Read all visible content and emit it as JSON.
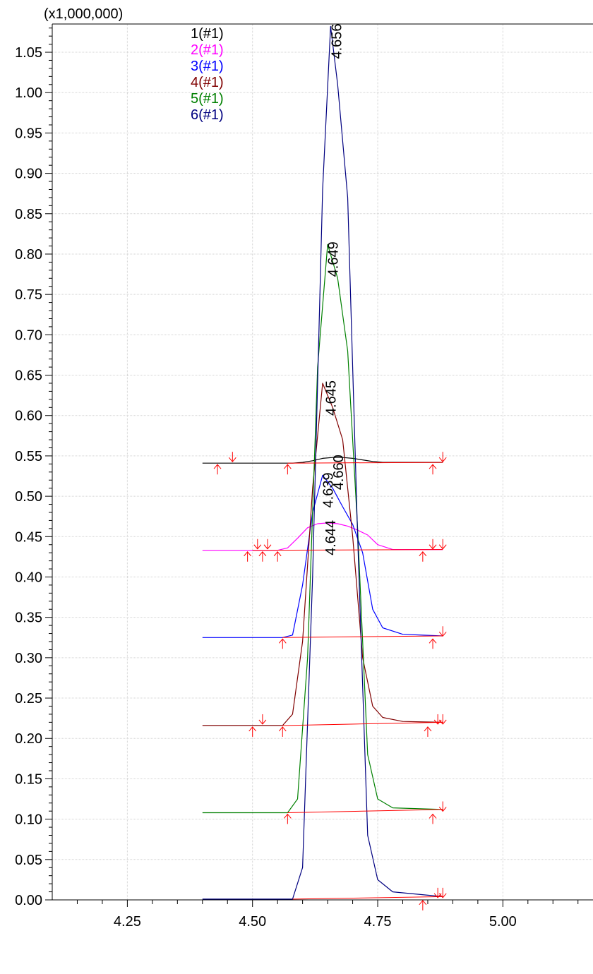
{
  "chart_data": {
    "type": "line",
    "title": "",
    "y_multiplier_label": "(x1,000,000)",
    "xlabel": "",
    "ylabel": "",
    "xlim": [
      4.1,
      5.18
    ],
    "ylim": [
      0.0,
      1.085
    ],
    "grid": true,
    "legend_position": "top-left",
    "x_ticks": [
      4.25,
      4.5,
      4.75,
      5.0
    ],
    "x_tick_labels": [
      "4.25",
      "4.50",
      "4.75",
      "5.00"
    ],
    "y_ticks": [
      0.0,
      0.05,
      0.1,
      0.15,
      0.2,
      0.25,
      0.3,
      0.35,
      0.4,
      0.45,
      0.5,
      0.55,
      0.6,
      0.65,
      0.7,
      0.75,
      0.8,
      0.85,
      0.9,
      0.95,
      1.0,
      1.05
    ],
    "y_tick_labels": [
      "0.00",
      "0.05",
      "0.10",
      "0.15",
      "0.20",
      "0.25",
      "0.30",
      "0.35",
      "0.40",
      "0.45",
      "0.50",
      "0.55",
      "0.60",
      "0.65",
      "0.70",
      "0.75",
      "0.80",
      "0.85",
      "0.90",
      "0.95",
      "1.00",
      "1.05"
    ],
    "baseline_color": "#ff0000",
    "marker_color": "#ff0000",
    "series": [
      {
        "name": "1(#1)",
        "color": "#000000",
        "x": [
          4.4,
          4.55,
          4.58,
          4.6,
          4.62,
          4.64,
          4.66,
          4.68,
          4.7,
          4.72,
          4.74,
          4.76,
          4.78,
          4.88
        ],
        "y": [
          0.541,
          0.541,
          0.541,
          0.542,
          0.544,
          0.547,
          0.548,
          0.548,
          0.547,
          0.545,
          0.543,
          0.542,
          0.542,
          0.542
        ],
        "baseline": [
          [
            4.57,
            0.541
          ],
          [
            4.88,
            0.542
          ]
        ],
        "markers": [
          {
            "x": 4.43,
            "dir": "up"
          },
          {
            "x": 4.46,
            "dir": "down"
          },
          {
            "x": 4.57,
            "dir": "up"
          },
          {
            "x": 4.86,
            "dir": "up"
          },
          {
            "x": 4.88,
            "dir": "down"
          }
        ],
        "peak": {
          "rt": "4.660",
          "x": 4.66,
          "y": 0.548
        }
      },
      {
        "name": "2(#1)",
        "color": "#ff00ff",
        "x": [
          4.4,
          4.5,
          4.55,
          4.57,
          4.59,
          4.61,
          4.63,
          4.65,
          4.67,
          4.69,
          4.71,
          4.73,
          4.75,
          4.78,
          4.88
        ],
        "y": [
          0.433,
          0.433,
          0.433,
          0.436,
          0.448,
          0.461,
          0.466,
          0.467,
          0.466,
          0.463,
          0.458,
          0.452,
          0.44,
          0.434,
          0.434
        ],
        "baseline": [
          [
            4.5,
            0.433
          ],
          [
            4.88,
            0.434
          ]
        ],
        "markers": [
          {
            "x": 4.49,
            "dir": "up"
          },
          {
            "x": 4.51,
            "dir": "down"
          },
          {
            "x": 4.52,
            "dir": "up"
          },
          {
            "x": 4.53,
            "dir": "down"
          },
          {
            "x": 4.55,
            "dir": "up"
          },
          {
            "x": 4.84,
            "dir": "up"
          },
          {
            "x": 4.86,
            "dir": "down"
          },
          {
            "x": 4.88,
            "dir": "down"
          }
        ],
        "peak": {
          "rt": "4.644",
          "x": 4.644,
          "y": 0.467
        }
      },
      {
        "name": "3(#1)",
        "color": "#0000ff",
        "x": [
          4.4,
          4.56,
          4.58,
          4.6,
          4.62,
          4.64,
          4.66,
          4.68,
          4.7,
          4.72,
          4.74,
          4.76,
          4.8,
          4.88
        ],
        "y": [
          0.325,
          0.325,
          0.328,
          0.39,
          0.48,
          0.526,
          0.51,
          0.487,
          0.465,
          0.43,
          0.36,
          0.337,
          0.329,
          0.327
        ],
        "baseline": [
          [
            4.56,
            0.325
          ],
          [
            4.88,
            0.327
          ]
        ],
        "markers": [
          {
            "x": 4.56,
            "dir": "up"
          },
          {
            "x": 4.86,
            "dir": "up"
          },
          {
            "x": 4.88,
            "dir": "down"
          }
        ],
        "peak": {
          "rt": "4.639",
          "x": 4.639,
          "y": 0.526
        }
      },
      {
        "name": "4(#1)",
        "color": "#800000",
        "x": [
          4.4,
          4.56,
          4.58,
          4.6,
          4.62,
          4.64,
          4.66,
          4.68,
          4.7,
          4.72,
          4.74,
          4.76,
          4.8,
          4.88
        ],
        "y": [
          0.216,
          0.216,
          0.23,
          0.32,
          0.51,
          0.64,
          0.61,
          0.57,
          0.45,
          0.3,
          0.24,
          0.226,
          0.221,
          0.22
        ],
        "baseline": [
          [
            4.56,
            0.216
          ],
          [
            4.88,
            0.22
          ]
        ],
        "markers": [
          {
            "x": 4.5,
            "dir": "up"
          },
          {
            "x": 4.52,
            "dir": "down"
          },
          {
            "x": 4.56,
            "dir": "up"
          },
          {
            "x": 4.85,
            "dir": "up"
          },
          {
            "x": 4.87,
            "dir": "down"
          },
          {
            "x": 4.88,
            "dir": "down"
          }
        ],
        "peak": {
          "rt": "4.645",
          "x": 4.645,
          "y": 0.64
        }
      },
      {
        "name": "5(#1)",
        "color": "#008000",
        "x": [
          4.4,
          4.57,
          4.59,
          4.61,
          4.63,
          4.65,
          4.67,
          4.69,
          4.71,
          4.73,
          4.75,
          4.78,
          4.88
        ],
        "y": [
          0.108,
          0.108,
          0.125,
          0.3,
          0.66,
          0.812,
          0.77,
          0.68,
          0.46,
          0.18,
          0.125,
          0.114,
          0.112
        ],
        "baseline": [
          [
            4.57,
            0.108
          ],
          [
            4.88,
            0.112
          ]
        ],
        "markers": [
          {
            "x": 4.57,
            "dir": "up"
          },
          {
            "x": 4.86,
            "dir": "up"
          },
          {
            "x": 4.88,
            "dir": "down"
          }
        ],
        "peak": {
          "rt": "4.649",
          "x": 4.649,
          "y": 0.812
        }
      },
      {
        "name": "6(#1)",
        "color": "#000080",
        "x": [
          4.4,
          4.58,
          4.6,
          4.62,
          4.64,
          4.656,
          4.67,
          4.69,
          4.71,
          4.73,
          4.75,
          4.78,
          4.88
        ],
        "y": [
          0.001,
          0.001,
          0.04,
          0.4,
          0.88,
          1.082,
          1.01,
          0.87,
          0.45,
          0.08,
          0.025,
          0.01,
          0.004
        ],
        "baseline": [
          [
            4.58,
            0.001
          ],
          [
            4.88,
            0.004
          ]
        ],
        "markers": [
          {
            "x": 4.84,
            "dir": "up"
          },
          {
            "x": 4.87,
            "dir": "down"
          },
          {
            "x": 4.88,
            "dir": "down"
          }
        ],
        "peak": {
          "rt": "4.656",
          "x": 4.656,
          "y": 1.082
        }
      }
    ]
  }
}
